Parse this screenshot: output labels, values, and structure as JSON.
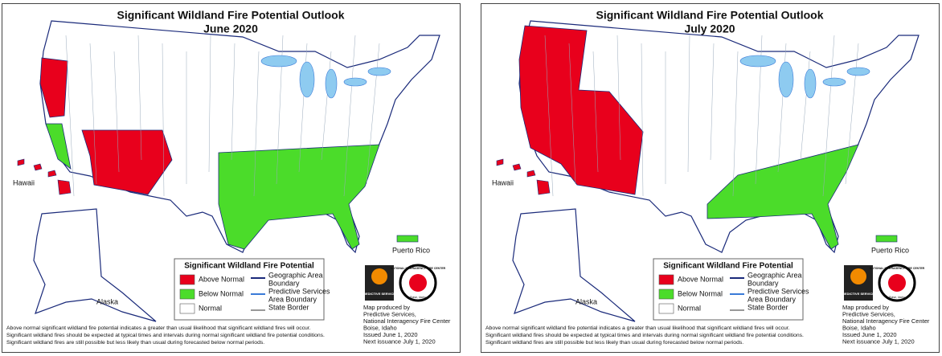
{
  "panels": [
    {
      "title": "Significant Wildland Fire Potential Outlook",
      "subtitle": "June 2020",
      "places": {
        "hawaii": "Hawaii",
        "alaska": "Alaska",
        "puerto_rico": "Puerto Rico"
      },
      "legend": {
        "title": "Significant Wildland Fire Potential",
        "items": [
          {
            "label": "Above Normal",
            "color": "#e8001c"
          },
          {
            "label": "Below Normal",
            "color": "#4bdc2a"
          },
          {
            "label": "Normal",
            "color": "#ffffff"
          }
        ],
        "boundaries": [
          {
            "lines": [
              "Geographic Area",
              "Boundary"
            ],
            "color": "#1a2a7a"
          },
          {
            "lines": [
              "Predictive Services",
              "Area Boundary"
            ],
            "color": "#3a7ad8"
          },
          {
            "lines": [
              "State Border"
            ],
            "color": "#999999"
          }
        ]
      },
      "logos": {
        "left": "PREDICTIVE SERVICES",
        "right": "NATIONAL INTERAGENCY FIRE CENTER",
        "city": "Boise, Idaho"
      },
      "credit": [
        "Map produced by",
        "Predictive Services,",
        "National Interagency Fire Center",
        "Boise, Idaho",
        "Issued June 1, 2020",
        "Next issuance July 1, 2020"
      ],
      "notes": [
        "Above normal significant wildland fire potential indicates a greater than usual likelihood that significant wildland fires will occur.",
        "Significant wildland fires should be expected at typical times and intervals during normal significant wildland fire potential conditions.",
        "Significant wildland fires are still possible but less likely than usual during forecasted below normal periods."
      ]
    },
    {
      "title": "Significant Wildland Fire Potential Outlook",
      "subtitle": "July 2020",
      "places": {
        "hawaii": "Hawaii",
        "alaska": "Alaska",
        "puerto_rico": "Puerto Rico"
      },
      "legend": {
        "title": "Significant Wildland Fire Potential",
        "items": [
          {
            "label": "Above Normal",
            "color": "#e8001c"
          },
          {
            "label": "Below Normal",
            "color": "#4bdc2a"
          },
          {
            "label": "Normal",
            "color": "#ffffff"
          }
        ],
        "boundaries": [
          {
            "lines": [
              "Geographic Area",
              "Boundary"
            ],
            "color": "#1a2a7a"
          },
          {
            "lines": [
              "Predictive Services",
              "Area Boundary"
            ],
            "color": "#3a7ad8"
          },
          {
            "lines": [
              "State Border"
            ],
            "color": "#999999"
          }
        ]
      },
      "logos": {
        "left": "PREDICTIVE SERVICES",
        "right": "NATIONAL INTERAGENCY FIRE CENTER",
        "city": "Boise, Idaho"
      },
      "credit": [
        "Map produced by",
        "Predictive Services,",
        "National Interagency Fire Center",
        "Boise, Idaho",
        "Issued June 1, 2020",
        "Next issuance July 1, 2020"
      ],
      "notes": [
        "Above normal significant wildland fire potential indicates a greater than usual likelihood that significant wildland fires will occur.",
        "Significant wildland fires should be expected at typical times and intervals during normal significant wildland fire potential conditions.",
        "Significant wildland fires are still possible but less likely than usual during forecasted below normal periods."
      ]
    }
  ]
}
